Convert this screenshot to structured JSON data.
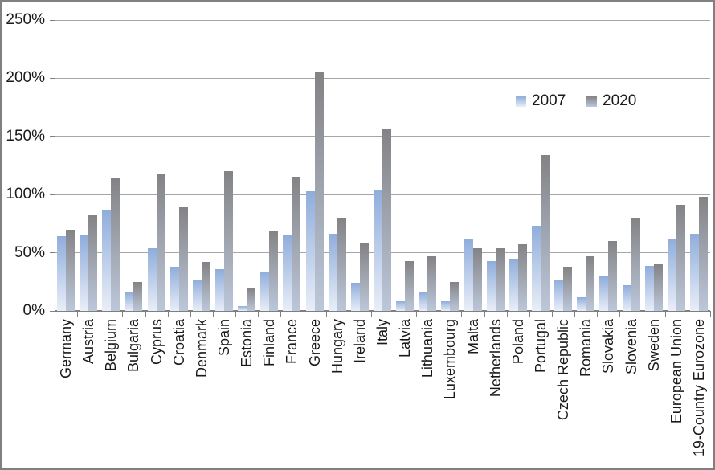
{
  "chart_data": {
    "type": "bar",
    "title": "",
    "xlabel": "",
    "ylabel": "",
    "ylim": [
      0,
      250
    ],
    "y_tick_step": 50,
    "y_ticks": [
      "0%",
      "50%",
      "100%",
      "150%",
      "200%",
      "250%"
    ],
    "grid": true,
    "legend_position": "inside-upper-right",
    "categories": [
      "Germany",
      "Austria",
      "Belgium",
      "Bulgaria",
      "Cyprus",
      "Croatia",
      "Denmark",
      "Spain",
      "Estonia",
      "Finland",
      "France",
      "Greece",
      "Hungary",
      "Ireland",
      "Italy",
      "Latvia",
      "Lithuania",
      "Luxembourg",
      "Malta",
      "Netherlands",
      "Poland",
      "Portugal",
      "Czech Republic",
      "Romania",
      "Slovakia",
      "Slovenia",
      "Sweden",
      "European Union",
      "19-Country Eurozone"
    ],
    "series": [
      {
        "name": "2007",
        "color_top": "#8FADDB",
        "color_bottom": "#E9EEF8",
        "values": [
          64,
          65,
          87,
          16,
          54,
          38,
          27,
          36,
          4,
          34,
          65,
          103,
          66,
          24,
          104,
          8,
          16,
          8,
          62,
          43,
          45,
          73,
          27,
          12,
          30,
          22,
          39,
          62,
          66
        ]
      },
      {
        "name": "2020",
        "color_top": "#838385",
        "color_bottom": "#BCC7DA",
        "values": [
          70,
          83,
          114,
          25,
          118,
          89,
          42,
          120,
          19,
          69,
          115,
          205,
          80,
          58,
          156,
          43,
          47,
          25,
          54,
          54,
          57,
          134,
          38,
          47,
          60,
          80,
          40,
          91,
          98
        ]
      }
    ]
  },
  "colors": {
    "gridline": "#a6a6a6",
    "axis": "#808080",
    "baseline": "#7f7f7f",
    "label_text": "#1a1a1a",
    "background": "#ffffff",
    "frame_border": "#808080"
  }
}
